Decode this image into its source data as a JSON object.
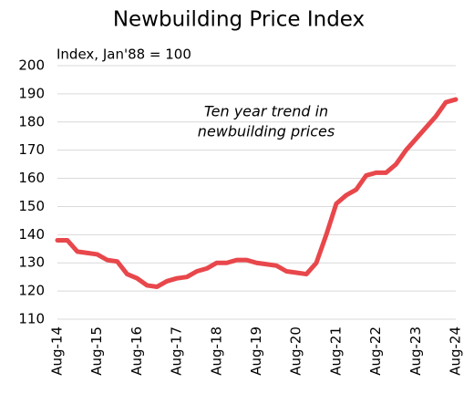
{
  "chart_data": {
    "type": "line",
    "title": "Newbuilding Price Index",
    "subtitle": "Index, Jan'88 = 100",
    "annotations": [
      "Ten year trend in",
      "newbuilding prices"
    ],
    "categories": [
      "Aug-14",
      null,
      null,
      null,
      "Aug-15",
      null,
      null,
      null,
      "Aug-16",
      null,
      null,
      null,
      "Aug-17",
      null,
      null,
      null,
      "Aug-18",
      null,
      null,
      null,
      "Aug-19",
      null,
      null,
      null,
      "Aug-20",
      null,
      null,
      null,
      "Aug-21",
      null,
      null,
      null,
      "Aug-22",
      null,
      null,
      null,
      "Aug-23",
      null,
      null,
      null,
      "Aug-24"
    ],
    "series": [
      {
        "name": "Newbuilding Price Index",
        "color": "#e8474b",
        "values": [
          138,
          138,
          134,
          133.5,
          133,
          131,
          130.5,
          126,
          124.5,
          122,
          121.5,
          123.5,
          124.5,
          125,
          127,
          128,
          130,
          130,
          131,
          131,
          130,
          129.5,
          129,
          127,
          126.5,
          126,
          130,
          140,
          151,
          154,
          156,
          161,
          162,
          162,
          165,
          170,
          174,
          178,
          182,
          187,
          188
        ]
      }
    ],
    "ylim": [
      110,
      200
    ],
    "yticks": [
      110,
      120,
      130,
      140,
      150,
      160,
      170,
      180,
      190,
      200
    ],
    "grid": true
  }
}
